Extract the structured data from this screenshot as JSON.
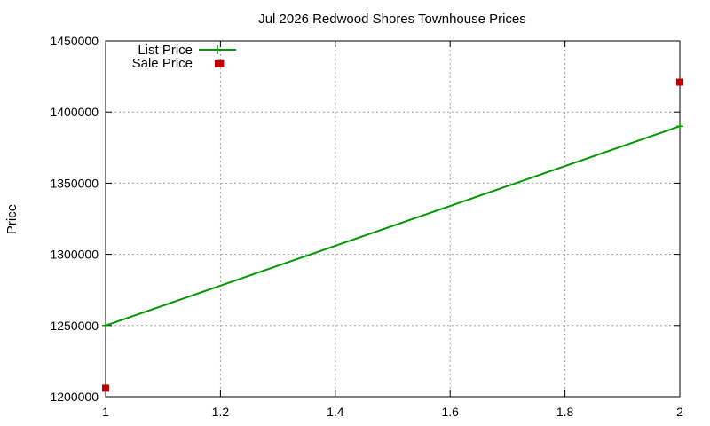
{
  "chart_data": {
    "type": "line",
    "title": "Jul 2026 Redwood Shores Townhouse Prices",
    "xlabel": "",
    "ylabel": "Price",
    "xlim": [
      1,
      2
    ],
    "ylim": [
      1200000,
      1450000
    ],
    "xticks": [
      "1",
      "1.2",
      "1.4",
      "1.6",
      "1.8",
      "2"
    ],
    "yticks": [
      "1200000",
      "1250000",
      "1300000",
      "1350000",
      "1400000",
      "1450000"
    ],
    "grid": true,
    "legend_position": "top-left",
    "series": [
      {
        "name": "List Price",
        "style": "line-with-plus-markers",
        "color": "#009900",
        "points": [
          {
            "x": 1,
            "y": 1250000
          },
          {
            "x": 2,
            "y": 1390000
          }
        ]
      },
      {
        "name": "Sale Price",
        "style": "square-markers",
        "color": "#c00000",
        "points": [
          {
            "x": 1,
            "y": 1206000
          },
          {
            "x": 1.2,
            "y": 1434000
          },
          {
            "x": 2,
            "y": 1421000
          }
        ]
      }
    ]
  }
}
